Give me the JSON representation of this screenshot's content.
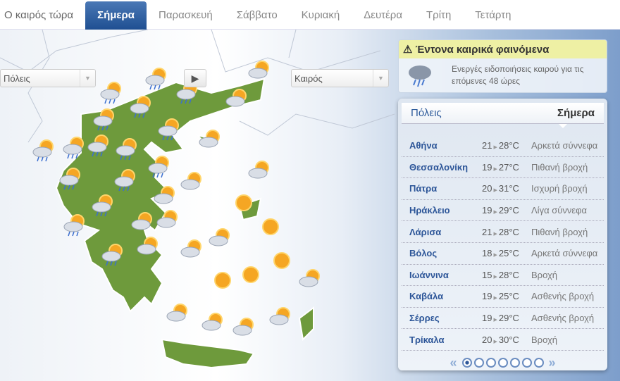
{
  "tabs": [
    {
      "label": "Ο καιρός τώρα"
    },
    {
      "label": "Σήμερα",
      "active": true
    },
    {
      "label": "Παρασκευή"
    },
    {
      "label": "Σάββατο"
    },
    {
      "label": "Κυριακή"
    },
    {
      "label": "Δευτέρα"
    },
    {
      "label": "Τρίτη"
    },
    {
      "label": "Τετάρτη"
    }
  ],
  "controls": {
    "cities_select": "Πόλεις",
    "weather_select": "Καιρός"
  },
  "warning": {
    "title": "Έντονα καιρικά φαινόμενα",
    "text": "Ενεργές ειδοποιήσεις καιρού για τις επόμενες 48 ώρες"
  },
  "panel": {
    "header_left": "Πόλεις",
    "header_right": "Σήμερα",
    "rows": [
      {
        "city": "Αθήνα",
        "min": "21",
        "max": "28°C",
        "desc": "Αρκετά σύννεφα"
      },
      {
        "city": "Θεσσαλονίκη",
        "min": "19",
        "max": "27°C",
        "desc": "Πιθανή βροχή"
      },
      {
        "city": "Πάτρα",
        "min": "20",
        "max": "31°C",
        "desc": "Ισχυρή βροχή"
      },
      {
        "city": "Ηράκλειο",
        "min": "19",
        "max": "29°C",
        "desc": "Λίγα σύννεφα"
      },
      {
        "city": "Λάρισα",
        "min": "21",
        "max": "28°C",
        "desc": "Πιθανή βροχή"
      },
      {
        "city": "Βόλος",
        "min": "18",
        "max": "25°C",
        "desc": "Αρκετά σύννεφα"
      },
      {
        "city": "Ιωάννινα",
        "min": "15",
        "max": "28°C",
        "desc": "Βροχή"
      },
      {
        "city": "Καβάλα",
        "min": "19",
        "max": "25°C",
        "desc": "Ασθενής βροχή"
      },
      {
        "city": "Σέρρες",
        "min": "19",
        "max": "29°C",
        "desc": "Ασθενής βροχή"
      },
      {
        "city": "Τρίκαλα",
        "min": "20",
        "max": "30°C",
        "desc": "Βροχή"
      }
    ],
    "pages": 7,
    "current_page": 1
  },
  "colors": {
    "land": "#6e9a3c",
    "accent": "#1f4f92",
    "warning": "#eef0a4"
  }
}
